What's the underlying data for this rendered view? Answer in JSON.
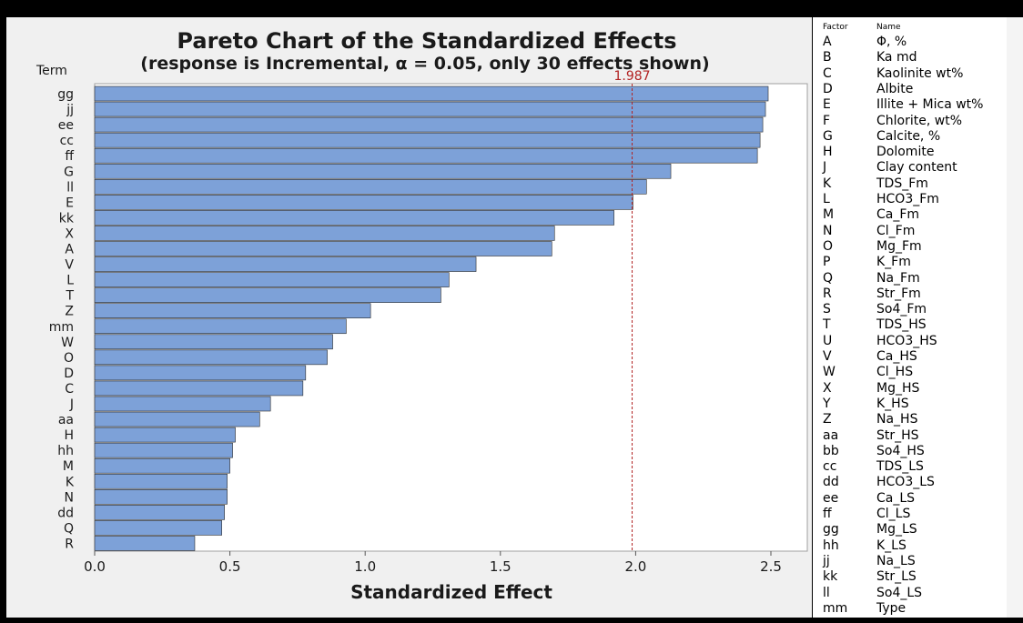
{
  "chart_data": {
    "type": "bar",
    "orientation": "horizontal",
    "title": "Pareto Chart of the Standardized Effects",
    "subtitle": "(response is Incremental, α = 0.05, only 30 effects shown)",
    "ylabel": "Term",
    "xlabel": "Standardized Effect",
    "xlim": [
      0,
      2.6
    ],
    "xticks": [
      "0.0",
      "0.5",
      "1.0",
      "1.5",
      "2.0",
      "2.5"
    ],
    "reference_line": {
      "value": 1.987,
      "label": "1.987",
      "color": "#b22222"
    },
    "bar_color": "#7da1d8",
    "categories": [
      "gg",
      "jj",
      "ee",
      "cc",
      "ff",
      "G",
      "ll",
      "E",
      "kk",
      "X",
      "A",
      "V",
      "L",
      "T",
      "Z",
      "mm",
      "W",
      "O",
      "D",
      "C",
      "J",
      "aa",
      "H",
      "hh",
      "M",
      "K",
      "N",
      "dd",
      "Q",
      "R"
    ],
    "values": [
      2.49,
      2.48,
      2.47,
      2.46,
      2.45,
      2.13,
      2.04,
      1.99,
      1.92,
      1.7,
      1.69,
      1.41,
      1.31,
      1.28,
      1.02,
      0.93,
      0.88,
      0.86,
      0.78,
      0.77,
      0.65,
      0.61,
      0.52,
      0.51,
      0.5,
      0.49,
      0.49,
      0.48,
      0.47,
      0.37
    ]
  },
  "legend": {
    "header_factor": "Factor",
    "header_name": "Name",
    "items": [
      {
        "code": "A",
        "name": "Φ, %"
      },
      {
        "code": "B",
        "name": "Ka md"
      },
      {
        "code": "C",
        "name": "Kaolinite wt%"
      },
      {
        "code": "D",
        "name": "Albite"
      },
      {
        "code": "E",
        "name": "Illite + Mica wt%"
      },
      {
        "code": "F",
        "name": "Chlorite, wt%"
      },
      {
        "code": "G",
        "name": "Calcite, %"
      },
      {
        "code": "H",
        "name": "Dolomite"
      },
      {
        "code": "J",
        "name": "Clay content"
      },
      {
        "code": "K",
        "name": "TDS_Fm"
      },
      {
        "code": "L",
        "name": "HCO3_Fm"
      },
      {
        "code": "M",
        "name": "Ca_Fm"
      },
      {
        "code": "N",
        "name": "Cl_Fm"
      },
      {
        "code": "O",
        "name": "Mg_Fm"
      },
      {
        "code": "P",
        "name": "K_Fm"
      },
      {
        "code": "Q",
        "name": "Na_Fm"
      },
      {
        "code": "R",
        "name": "Str_Fm"
      },
      {
        "code": "S",
        "name": "So4_Fm"
      },
      {
        "code": "T",
        "name": "TDS_HS"
      },
      {
        "code": "U",
        "name": "HCO3_HS"
      },
      {
        "code": "V",
        "name": "Ca_HS"
      },
      {
        "code": "W",
        "name": "Cl_HS"
      },
      {
        "code": "X",
        "name": "Mg_HS"
      },
      {
        "code": "Y",
        "name": "K_HS"
      },
      {
        "code": "Z",
        "name": "Na_HS"
      },
      {
        "code": "aa",
        "name": "Str_HS"
      },
      {
        "code": "bb",
        "name": "So4_HS"
      },
      {
        "code": "cc",
        "name": "TDS_LS"
      },
      {
        "code": "dd",
        "name": "HCO3_LS"
      },
      {
        "code": "ee",
        "name": "Ca_LS"
      },
      {
        "code": "ff",
        "name": "Cl_LS"
      },
      {
        "code": "gg",
        "name": "Mg_LS"
      },
      {
        "code": "hh",
        "name": "K_LS"
      },
      {
        "code": "jj",
        "name": "Na_LS"
      },
      {
        "code": "kk",
        "name": "Str_LS"
      },
      {
        "code": "ll",
        "name": "So4_LS"
      },
      {
        "code": "mm",
        "name": "Type"
      }
    ]
  }
}
